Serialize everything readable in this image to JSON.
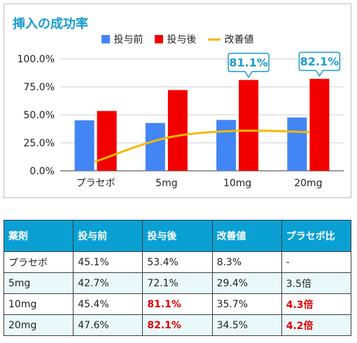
{
  "chart_data": {
    "type": "bar",
    "title": "挿入の成功率",
    "categories": [
      "プラセボ",
      "5mg",
      "10mg",
      "20mg"
    ],
    "series": [
      {
        "name": "投与前",
        "type": "bar",
        "color": "#4285f4",
        "values": [
          45.1,
          42.7,
          45.4,
          47.6
        ]
      },
      {
        "name": "投与後",
        "type": "bar",
        "color": "#f20000",
        "values": [
          53.4,
          72.1,
          81.1,
          82.1
        ]
      },
      {
        "name": "改善値",
        "type": "line",
        "color": "#f6b900",
        "values": [
          8.3,
          29.4,
          35.7,
          34.5
        ]
      }
    ],
    "ylim": [
      0,
      100
    ],
    "yticks": [
      "0.0%",
      "25.0%",
      "50.0%",
      "75.0%",
      "100.0%"
    ],
    "ytick_values": [
      0,
      25,
      50,
      75,
      100
    ],
    "callouts": [
      {
        "category": "10mg",
        "series": "投与後",
        "text": "81.1%"
      },
      {
        "category": "20mg",
        "series": "投与後",
        "text": "82.1%"
      }
    ],
    "grid": true,
    "legend": "top"
  },
  "table": {
    "headers": [
      "薬剤",
      "投与前",
      "投与後",
      "改善値",
      "プラセボ比"
    ],
    "rows": [
      [
        "プラセボ",
        "45.1%",
        "53.4%",
        "8.3%",
        "-"
      ],
      [
        "5mg",
        "42.7%",
        "72.1%",
        "29.4%",
        "3.5倍"
      ],
      [
        "10mg",
        "45.4%",
        "81.1%",
        "35.7%",
        "4.3倍"
      ],
      [
        "20mg",
        "47.6%",
        "82.1%",
        "34.5%",
        "4.2倍"
      ]
    ],
    "highlight_color": "#e00000",
    "header_color": "#0aa0d4"
  }
}
